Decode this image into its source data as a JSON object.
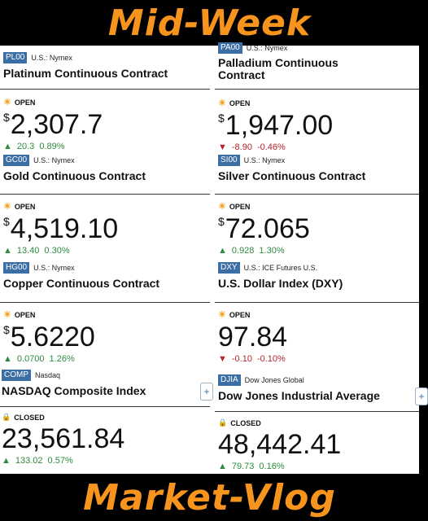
{
  "banner": {
    "top": "Mid-Week",
    "bottom": "Market-Vlog"
  },
  "icons": {
    "sun": "sun-icon",
    "lock": "lock-icon",
    "up": "triangle-up-icon",
    "down": "triangle-down-icon",
    "add": "plus-icon"
  },
  "colors": {
    "banner_text": "#f7941d",
    "tag_bg": "#3b6ea5",
    "up": "#2e8b3e",
    "down": "#b3262e"
  },
  "left": {
    "pl": {
      "tag": "PL00",
      "exchange": "U.S.: Nymex",
      "name": "Platinum Continuous Contract"
    },
    "pl_quote": {
      "status": "OPEN",
      "currency": "$",
      "price": "2,307.7",
      "change": "20.3",
      "pct": "0.89%"
    },
    "gc": {
      "tag": "GC00",
      "exchange": "U.S.: Nymex",
      "name": "Gold Continuous Contract"
    },
    "gc_quote": {
      "status": "OPEN",
      "currency": "$",
      "price": "4,519.10",
      "change": "13.40",
      "pct": "0.30%"
    },
    "hg": {
      "tag": "HG00",
      "exchange": "U.S.: Nymex",
      "name": "Copper Continuous Contract"
    },
    "hg_quote": {
      "status": "OPEN",
      "currency": "$",
      "price": "5.6220",
      "change": "0.0700",
      "pct": "1.26%"
    },
    "comp": {
      "tag": "COMP",
      "exchange": "Nasdaq",
      "name": "NASDAQ Composite Index",
      "add": "+"
    },
    "comp_quote": {
      "status": "CLOSED",
      "price": "23,561.84",
      "change": "133.02",
      "pct": "0.57%"
    }
  },
  "right": {
    "pa": {
      "tag": "PA00",
      "exchange": "U.S.: Nymex",
      "name_line1": "Palladium Continuous",
      "name_line2": "Contract"
    },
    "pa_quote": {
      "status": "OPEN",
      "currency": "$",
      "price": "1,947.00",
      "change": "-8.90",
      "pct": "-0.46%"
    },
    "si": {
      "tag": "SI00",
      "exchange": "U.S.: Nymex",
      "name": "Silver Continuous Contract"
    },
    "si_quote": {
      "status": "OPEN",
      "currency": "$",
      "price": "72.065",
      "change": "0.928",
      "pct": "1.30%"
    },
    "dxy": {
      "tag": "DXY",
      "exchange": "U.S.: ICE Futures U.S.",
      "name": "U.S. Dollar Index (DXY)"
    },
    "dxy_quote": {
      "status": "OPEN",
      "price": "97.84",
      "change": "-0.10",
      "pct": "-0.10%"
    },
    "djia": {
      "tag": "DJIA",
      "exchange": "Dow Jones Global",
      "name": "Dow Jones Industrial Average"
    },
    "djia_quote": {
      "status": "CLOSED",
      "price": "48,442.41",
      "change": "79.73",
      "pct": "0.16%"
    }
  }
}
